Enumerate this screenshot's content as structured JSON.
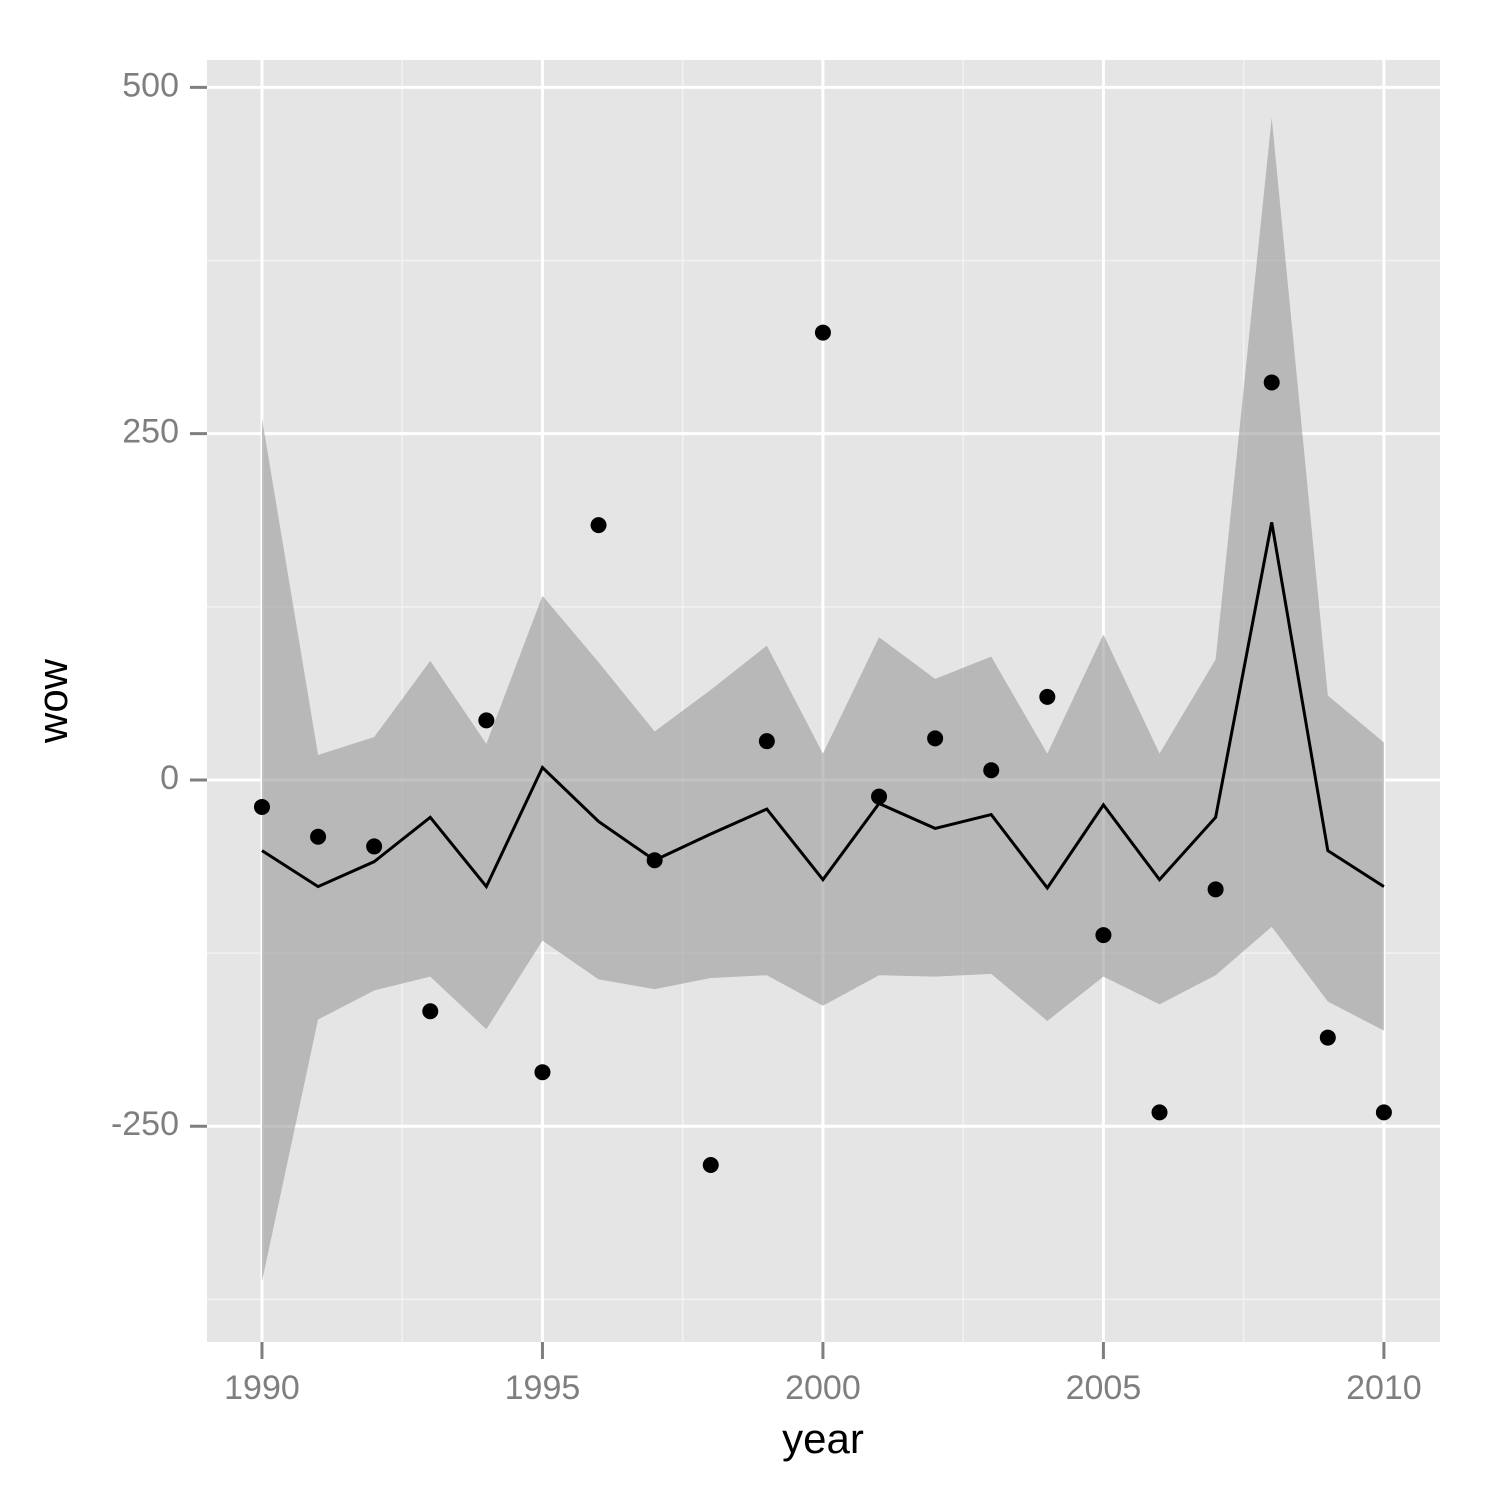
{
  "chart_data": {
    "type": "line",
    "x_label": "year",
    "y_label": "wow",
    "x": [
      1990,
      1991,
      1992,
      1993,
      1994,
      1995,
      1996,
      1997,
      1998,
      1999,
      2000,
      2001,
      2002,
      2003,
      2004,
      2005,
      2006,
      2007,
      2008,
      2009,
      2010
    ],
    "values": [
      -51,
      -77,
      -59,
      -27,
      -77,
      9,
      -30,
      -58,
      -39,
      -21,
      -72,
      -17,
      -35,
      -25,
      -78,
      -18,
      -72,
      -27,
      186,
      -51,
      -77
    ],
    "points": [
      -19.5,
      -41,
      -48,
      -167,
      43,
      -211,
      184,
      -58,
      -278,
      28,
      323,
      -12,
      30,
      7,
      60,
      -112,
      -240,
      -79,
      287,
      -186,
      -240
    ],
    "band_lower": [
      -362,
      -173,
      -152,
      -142,
      -180,
      -116,
      -144,
      -151,
      -143,
      -141,
      -163,
      -141,
      -142,
      -140,
      -174,
      -142,
      -162,
      -141,
      -106,
      -160,
      -181
    ],
    "band_upper": [
      261,
      18,
      31,
      86,
      26,
      133,
      85,
      35,
      65,
      97,
      19,
      103,
      73,
      89,
      19,
      105,
      19,
      87,
      478,
      61,
      27
    ],
    "line_color": "#000000",
    "point_color": "#000000",
    "band_color": "#999999",
    "band_opacity": 0.6,
    "panel_color": "#e5e5e5",
    "grid": true,
    "xlim": [
      1989.02,
      2011
    ],
    "xticks": [
      1990,
      1995,
      2000,
      2005,
      2010
    ],
    "xminor": [
      1992.5,
      1997.5,
      2002.5,
      2007.5
    ],
    "ylim": [
      -405.8,
      519.8
    ],
    "yticks": [
      -250,
      0,
      250,
      500
    ],
    "yminor": [
      -375,
      -125,
      125,
      375
    ]
  }
}
